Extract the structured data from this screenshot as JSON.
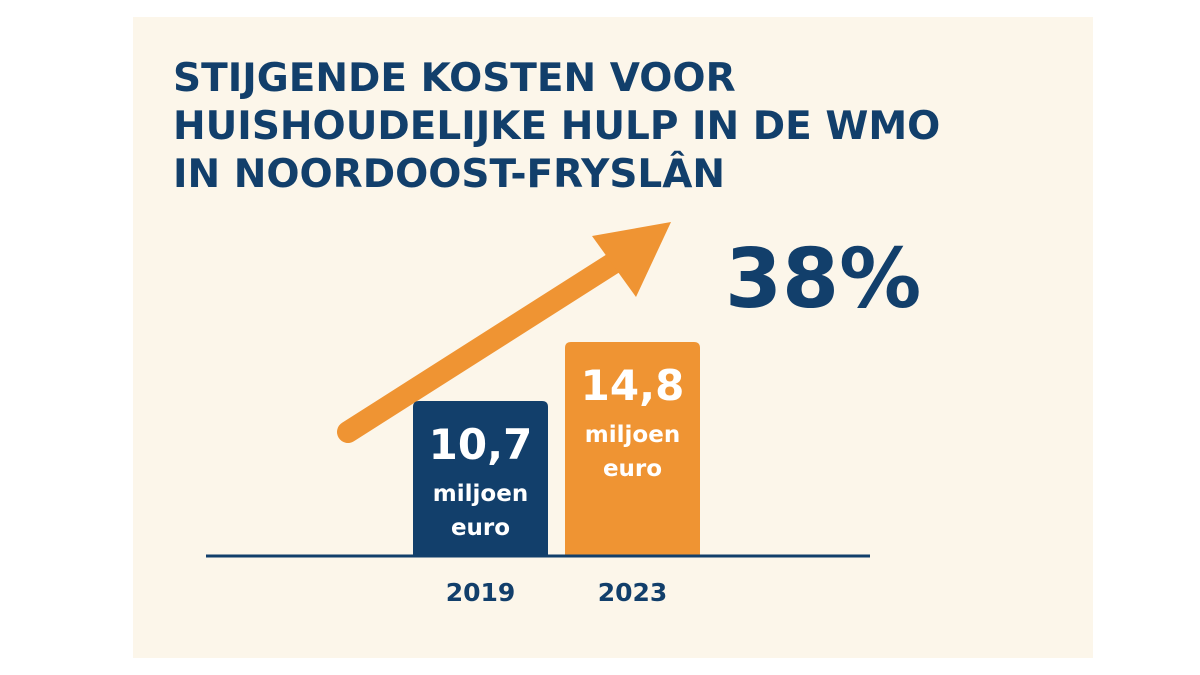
{
  "chart_data": {
    "type": "bar",
    "title": "STIJGENDE KOSTEN VOOR HUISHOUDELIJKE HULP IN DE WMO IN NOORDOOST-FRYSLÂN",
    "title_lines": [
      "STIJGENDE KOSTEN VOOR",
      "HUISHOUDELIJKE HULP IN DE WMO",
      "IN NOORDOOST-FRYSLÂN"
    ],
    "categories": [
      "2019",
      "2023"
    ],
    "values": [
      10.7,
      14.8
    ],
    "value_labels": [
      "10,7",
      "14,8"
    ],
    "unit_labels": [
      [
        "miljoen",
        "euro"
      ],
      [
        "miljoen",
        "euro"
      ]
    ],
    "ylim": [
      0,
      16.5
    ],
    "xlabel": "",
    "ylabel": "",
    "grid": false,
    "annotation": "38%",
    "trend_arrow": true
  },
  "colors": {
    "background": "#fcf6ea",
    "navy": "#123f6b",
    "orange": "#ef9433",
    "bar_text": "#ffffff"
  }
}
